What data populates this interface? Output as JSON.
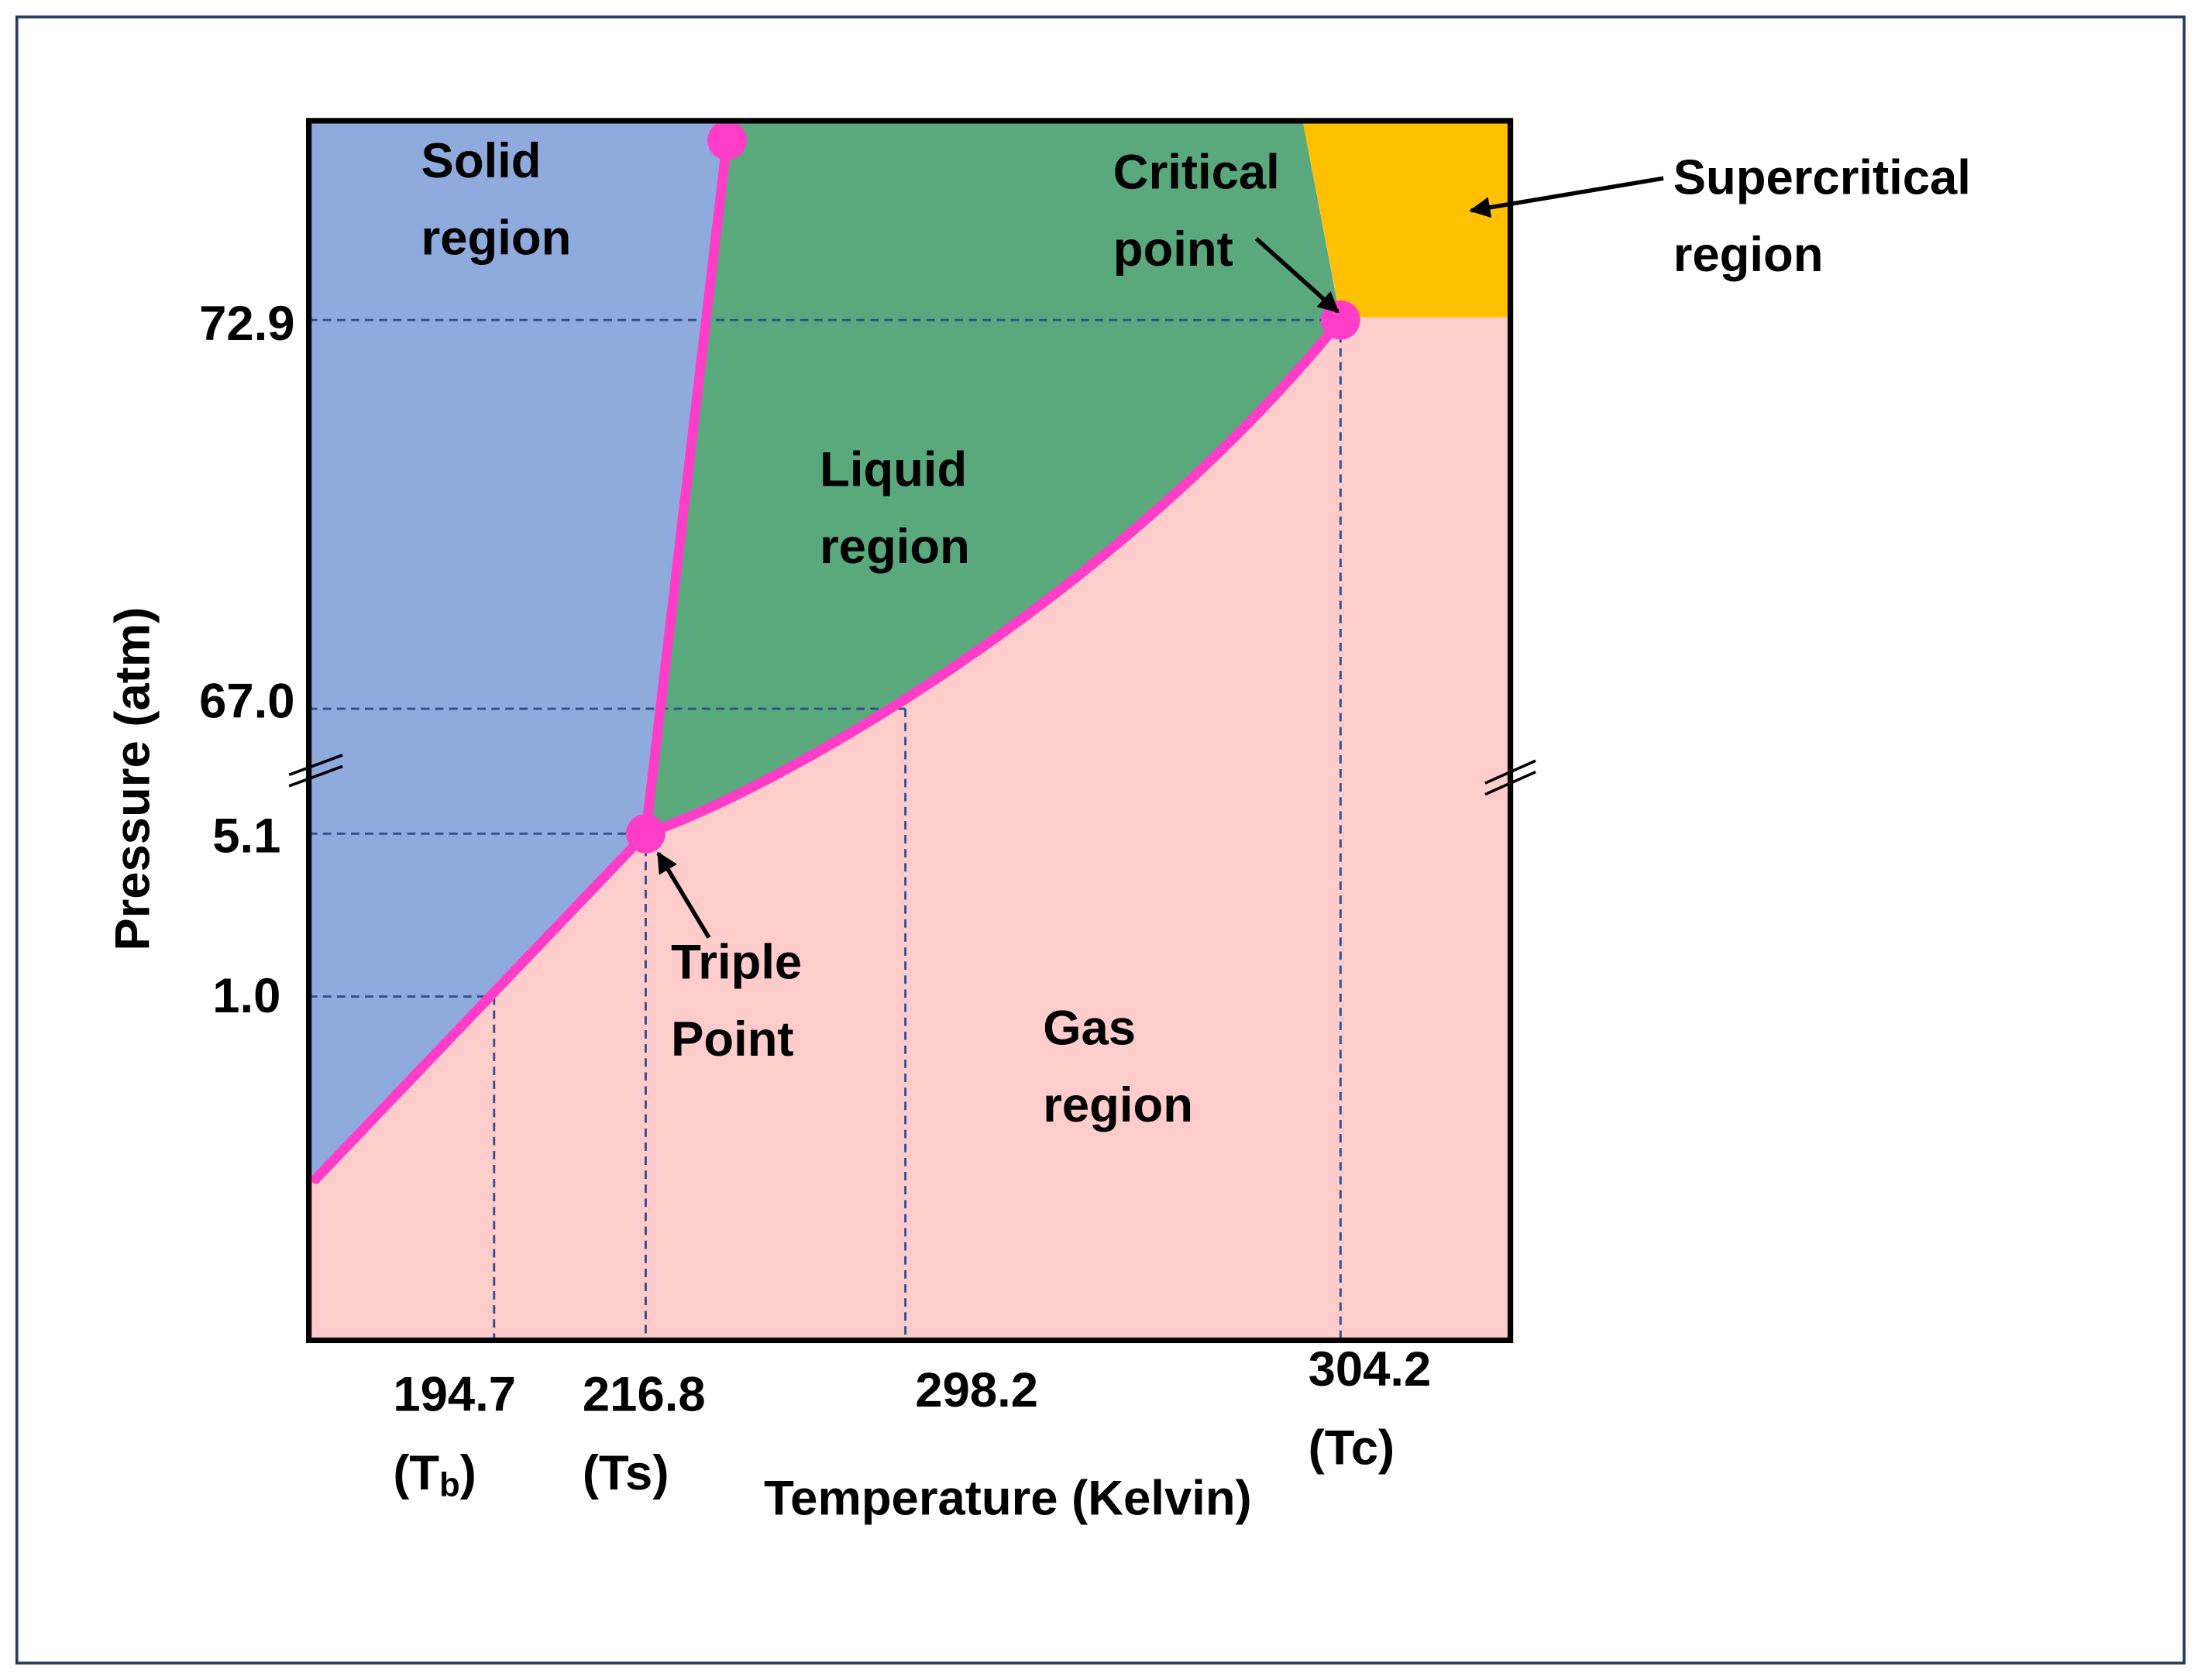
{
  "regions": {
    "solid": [
      "Solid",
      "region"
    ],
    "liquid": [
      "Liquid",
      "region"
    ],
    "gas": [
      "Gas",
      "region"
    ],
    "supercritical": [
      "Supercritical",
      "region"
    ]
  },
  "points": {
    "critical": [
      "Critical",
      "point"
    ],
    "triple": [
      "Triple",
      "Point"
    ]
  },
  "y_axis": {
    "title": "Pressure (atm)",
    "ticks": [
      "72.9",
      "67.0",
      "5.1",
      "1.0"
    ]
  },
  "x_axis": {
    "title": "Temperature (Kelvin)",
    "ticks": [
      {
        "label": "194.7",
        "note": {
          "before": "(T",
          "sub": "b",
          "after": ")"
        }
      },
      {
        "label": "216.8",
        "note": {
          "before": "(Ts)"
        }
      },
      {
        "label": "298.2"
      },
      {
        "label": "304.2",
        "note": {
          "before": "(Tc)"
        }
      }
    ]
  }
}
